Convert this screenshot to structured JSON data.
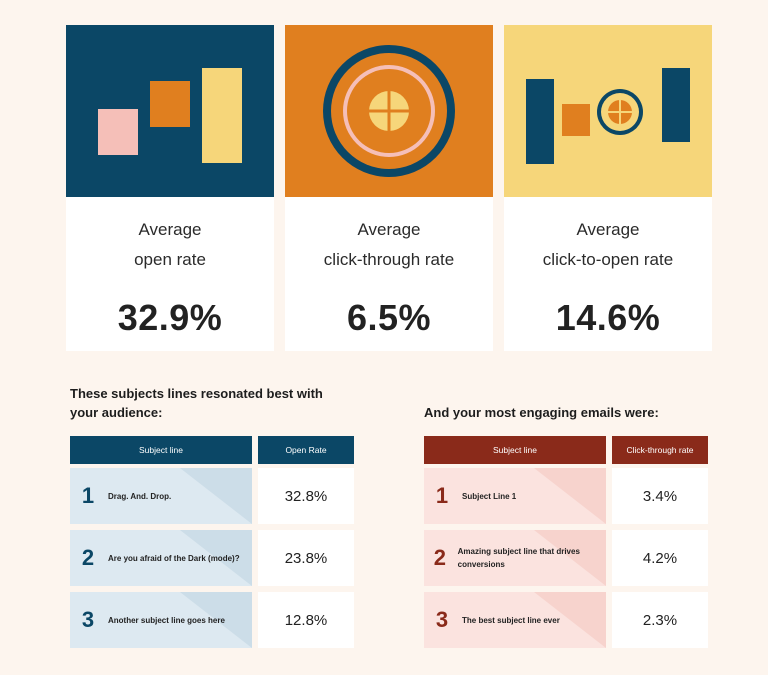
{
  "stats": [
    {
      "line1": "Average",
      "line2": "open rate",
      "value": "32.9%"
    },
    {
      "line1": "Average",
      "line2": "click-through rate",
      "value": "6.5%"
    },
    {
      "line1": "Average",
      "line2": "click-to-open rate",
      "value": "14.6%"
    }
  ],
  "subjects": {
    "title_line1": "These subjects lines resonated best with",
    "title_line2": "your audience:",
    "col1": "Subject line",
    "col2": "Open Rate",
    "rows": [
      {
        "rank": "1",
        "subject": "Drag. And. Drop.",
        "rate": "32.8%"
      },
      {
        "rank": "2",
        "subject": "Are you afraid of the Dark (mode)?",
        "rate": "23.8%"
      },
      {
        "rank": "3",
        "subject": "Another subject line goes here",
        "rate": "12.8%"
      }
    ]
  },
  "emails": {
    "title": "And your most engaging emails were:",
    "col1": "Subject line",
    "col2": "Click-through rate",
    "rows": [
      {
        "rank": "1",
        "subject": "Subject Line 1",
        "rate": "3.4%"
      },
      {
        "rank": "2",
        "subject": "Amazing subject line that drives conversions",
        "rate": "4.2%"
      },
      {
        "rank": "3",
        "subject": "The best subject line ever",
        "rate": "2.3%"
      }
    ]
  },
  "colors": {
    "navy": "#0b4766",
    "orange": "#e07f1f",
    "yellow": "#f6d67a",
    "pink": "#f5bfb8",
    "maroon": "#8a2a1a",
    "light_blue": "#dde9f1",
    "light_pink": "#fbe3df"
  }
}
